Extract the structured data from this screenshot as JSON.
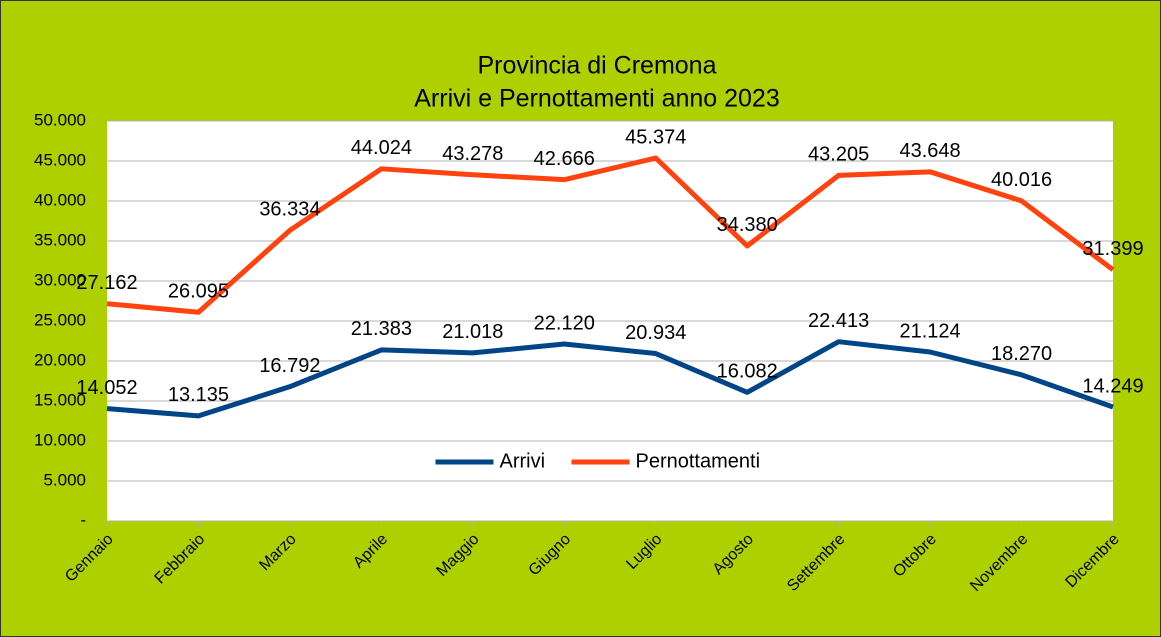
{
  "chart_data": {
    "type": "line",
    "title": "Provincia di Cremona",
    "subtitle": "Arrivi e Pernottamenti anno 2023",
    "categories": [
      "Gennaio",
      "Febbraio",
      "Marzo",
      "Aprile",
      "Maggio",
      "Giugno",
      "Luglio",
      "Agosto",
      "Settembre",
      "Ottobre",
      "Novembre",
      "Dicembre"
    ],
    "series": [
      {
        "name": "Arrivi",
        "color": "#004586",
        "values": [
          14052,
          13135,
          16792,
          21383,
          21018,
          22120,
          20934,
          16082,
          22413,
          21124,
          18270,
          14249
        ],
        "value_labels": [
          "14.052",
          "13.135",
          "16.792",
          "21.383",
          "21.018",
          "22.120",
          "20.934",
          "16.082",
          "22.413",
          "21.124",
          "18.270",
          "14.249"
        ]
      },
      {
        "name": "Pernottamenti",
        "color": "#ff420e",
        "values": [
          27162,
          26095,
          36334,
          44024,
          43278,
          42666,
          45374,
          34380,
          43205,
          43648,
          40016,
          31399
        ],
        "value_labels": [
          "27.162",
          "26.095",
          "36.334",
          "44.024",
          "43.278",
          "42.666",
          "45.374",
          "34.380",
          "43.205",
          "43.648",
          "40.016",
          "31.399"
        ]
      }
    ],
    "ylim": [
      0,
      50000
    ],
    "yticks": [
      {
        "value": 0,
        "label": "-"
      },
      {
        "value": 5000,
        "label": "5.000"
      },
      {
        "value": 10000,
        "label": "10.000"
      },
      {
        "value": 15000,
        "label": "15.000"
      },
      {
        "value": 20000,
        "label": "20.000"
      },
      {
        "value": 25000,
        "label": "25.000"
      },
      {
        "value": 30000,
        "label": "30.000"
      },
      {
        "value": 35000,
        "label": "35.000"
      },
      {
        "value": 40000,
        "label": "40.000"
      },
      {
        "value": 45000,
        "label": "45.000"
      },
      {
        "value": 50000,
        "label": "50.000"
      }
    ],
    "grid": true,
    "legend": "center",
    "background": "#afd000"
  }
}
